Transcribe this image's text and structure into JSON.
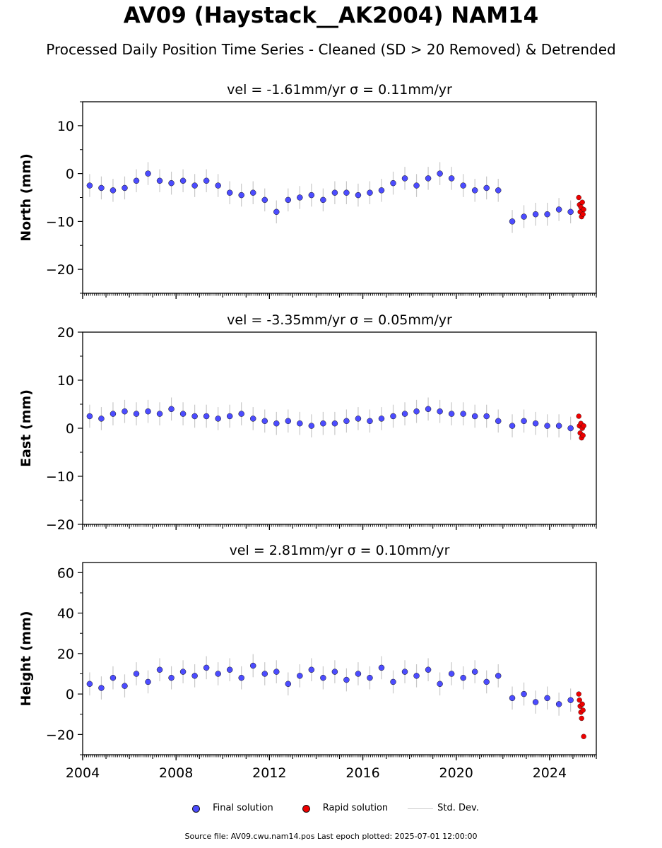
{
  "title": "AV09 (Haystack__AK2004) NAM14",
  "subtitle": "Processed Daily Position Time Series - Cleaned (SD > 20 Removed) & Detrended",
  "legend": {
    "final": "Final solution",
    "rapid": "Rapid solution",
    "sd": "Std. Dev."
  },
  "colors": {
    "final": "#4c4cff",
    "rapid": "#ee0000",
    "sd": "#c8c8c8"
  },
  "footer": "Source file: AV09.cwu.nam14.pos  Last epoch plotted: 2025-07-01 12:00:00",
  "chart_data": [
    {
      "type": "scatter",
      "title": "vel = -1.61mm/yr   σ = 0.11mm/yr",
      "ylabel": "North (mm)",
      "xlim": [
        2004.0,
        2026.0
      ],
      "ylim": [
        -25.0,
        15.0
      ],
      "yticks": [
        -20,
        -10,
        0,
        10
      ],
      "xticks": [
        2004,
        2008,
        2012,
        2016,
        2020,
        2024
      ],
      "show_xticklabels": false,
      "series": [
        {
          "name": "Final solution",
          "x": [
            2004.3,
            2004.8,
            2005.3,
            2005.8,
            2006.3,
            2006.8,
            2007.3,
            2007.8,
            2008.3,
            2008.8,
            2009.3,
            2009.8,
            2010.3,
            2010.8,
            2011.3,
            2011.8,
            2012.3,
            2012.8,
            2013.3,
            2013.8,
            2014.3,
            2014.8,
            2015.3,
            2015.8,
            2016.3,
            2016.8,
            2017.3,
            2017.8,
            2018.3,
            2018.8,
            2019.3,
            2019.8,
            2020.3,
            2020.8,
            2021.3,
            2021.8,
            2022.4,
            2022.9,
            2023.4,
            2023.9,
            2024.4,
            2024.9
          ],
          "y": [
            -2.5,
            -3,
            -3.5,
            -3,
            -1.5,
            0,
            -1.5,
            -2,
            -1.5,
            -2.5,
            -1.5,
            -2.5,
            -4,
            -4.5,
            -4,
            -5.5,
            -8,
            -5.5,
            -5,
            -4.5,
            -5.5,
            -4,
            -4,
            -4.5,
            -4,
            -3.5,
            -2,
            -1,
            -2.5,
            -1,
            0,
            -1,
            -2.5,
            -3.5,
            -3,
            -3.5,
            -10,
            -9,
            -8.5,
            -8.5,
            -7.5,
            -8
          ]
        },
        {
          "name": "Rapid solution",
          "x": [
            2025.25,
            2025.28,
            2025.31,
            2025.34,
            2025.37,
            2025.4,
            2025.43,
            2025.46
          ],
          "y": [
            -5,
            -6.5,
            -8,
            -7,
            -9,
            -6,
            -8.5,
            -7.5
          ]
        }
      ]
    },
    {
      "type": "scatter",
      "title": "vel = -3.35mm/yr   σ = 0.05mm/yr",
      "ylabel": "East (mm)",
      "xlim": [
        2004.0,
        2026.0
      ],
      "ylim": [
        -20.0,
        20.0
      ],
      "yticks": [
        -20,
        -10,
        0,
        10,
        20
      ],
      "xticks": [
        2004,
        2008,
        2012,
        2016,
        2020,
        2024
      ],
      "show_xticklabels": false,
      "series": [
        {
          "name": "Final solution",
          "x": [
            2004.3,
            2004.8,
            2005.3,
            2005.8,
            2006.3,
            2006.8,
            2007.3,
            2007.8,
            2008.3,
            2008.8,
            2009.3,
            2009.8,
            2010.3,
            2010.8,
            2011.3,
            2011.8,
            2012.3,
            2012.8,
            2013.3,
            2013.8,
            2014.3,
            2014.8,
            2015.3,
            2015.8,
            2016.3,
            2016.8,
            2017.3,
            2017.8,
            2018.3,
            2018.8,
            2019.3,
            2019.8,
            2020.3,
            2020.8,
            2021.3,
            2021.8,
            2022.4,
            2022.9,
            2023.4,
            2023.9,
            2024.4,
            2024.9
          ],
          "y": [
            2.5,
            2,
            3,
            3.5,
            3,
            3.5,
            3,
            4,
            3,
            2.5,
            2.5,
            2,
            2.5,
            3,
            2,
            1.5,
            1,
            1.5,
            1,
            0.5,
            1,
            1,
            1.5,
            2,
            1.5,
            2,
            2.5,
            3,
            3.5,
            4,
            3.5,
            3,
            3,
            2.5,
            2.5,
            1.5,
            0.5,
            1.5,
            1,
            0.5,
            0.5,
            0
          ]
        },
        {
          "name": "Rapid solution",
          "x": [
            2025.25,
            2025.28,
            2025.31,
            2025.34,
            2025.37,
            2025.4,
            2025.43,
            2025.46
          ],
          "y": [
            2.5,
            0.5,
            -1,
            1,
            -2,
            0,
            -1.5,
            0.5
          ]
        }
      ]
    },
    {
      "type": "scatter",
      "title": "vel = 2.81mm/yr   σ = 0.10mm/yr",
      "ylabel": "Height (mm)",
      "xlim": [
        2004.0,
        2026.0
      ],
      "ylim": [
        -30.0,
        65.0
      ],
      "yticks": [
        -20,
        0,
        20,
        40,
        60
      ],
      "xticks": [
        2004,
        2008,
        2012,
        2016,
        2020,
        2024
      ],
      "show_xticklabels": true,
      "series": [
        {
          "name": "Final solution",
          "x": [
            2004.3,
            2004.8,
            2005.3,
            2005.8,
            2006.3,
            2006.8,
            2007.3,
            2007.8,
            2008.3,
            2008.8,
            2009.3,
            2009.8,
            2010.3,
            2010.8,
            2011.3,
            2011.8,
            2012.3,
            2012.8,
            2013.3,
            2013.8,
            2014.3,
            2014.8,
            2015.3,
            2015.8,
            2016.3,
            2016.8,
            2017.3,
            2017.8,
            2018.3,
            2018.8,
            2019.3,
            2019.8,
            2020.3,
            2020.8,
            2021.3,
            2021.8,
            2022.4,
            2022.9,
            2023.4,
            2023.9,
            2024.4,
            2024.9
          ],
          "y": [
            5,
            3,
            8,
            4,
            10,
            6,
            12,
            8,
            11,
            9,
            13,
            10,
            12,
            8,
            14,
            10,
            11,
            5,
            9,
            12,
            8,
            11,
            7,
            10,
            8,
            13,
            6,
            11,
            9,
            12,
            5,
            10,
            8,
            11,
            6,
            9,
            -2,
            0,
            -4,
            -2,
            -5,
            -3
          ]
        },
        {
          "name": "Rapid solution",
          "x": [
            2025.25,
            2025.28,
            2025.31,
            2025.34,
            2025.37,
            2025.4,
            2025.43,
            2025.46
          ],
          "y": [
            0,
            -3,
            -6,
            -9,
            -12,
            -5,
            -8,
            -21
          ]
        }
      ]
    }
  ]
}
